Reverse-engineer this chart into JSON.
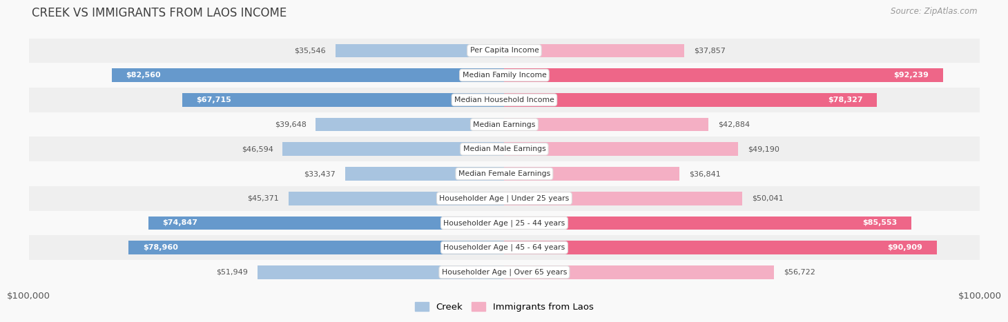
{
  "title": "Creek vs Immigrants from Laos Income",
  "source": "Source: ZipAtlas.com",
  "categories": [
    "Per Capita Income",
    "Median Family Income",
    "Median Household Income",
    "Median Earnings",
    "Median Male Earnings",
    "Median Female Earnings",
    "Householder Age | Under 25 years",
    "Householder Age | 25 - 44 years",
    "Householder Age | 45 - 64 years",
    "Householder Age | Over 65 years"
  ],
  "creek_values": [
    35546,
    82560,
    67715,
    39648,
    46594,
    33437,
    45371,
    74847,
    78960,
    51949
  ],
  "laos_values": [
    37857,
    92239,
    78327,
    42884,
    49190,
    36841,
    50041,
    85553,
    90909,
    56722
  ],
  "max_value": 100000,
  "creek_color_light": "#a8c4e0",
  "creek_color_dark": "#6699cc",
  "laos_color_light": "#f4afc4",
  "laos_color_dark": "#ee6688",
  "creek_label": "Creek",
  "laos_label": "Immigrants from Laos",
  "bg_color": "#f9f9f9",
  "row_bg_even": "#efefef",
  "row_bg_odd": "#f9f9f9",
  "x_axis_label_left": "$100,000",
  "x_axis_label_right": "$100,000",
  "dark_threshold": 60000
}
